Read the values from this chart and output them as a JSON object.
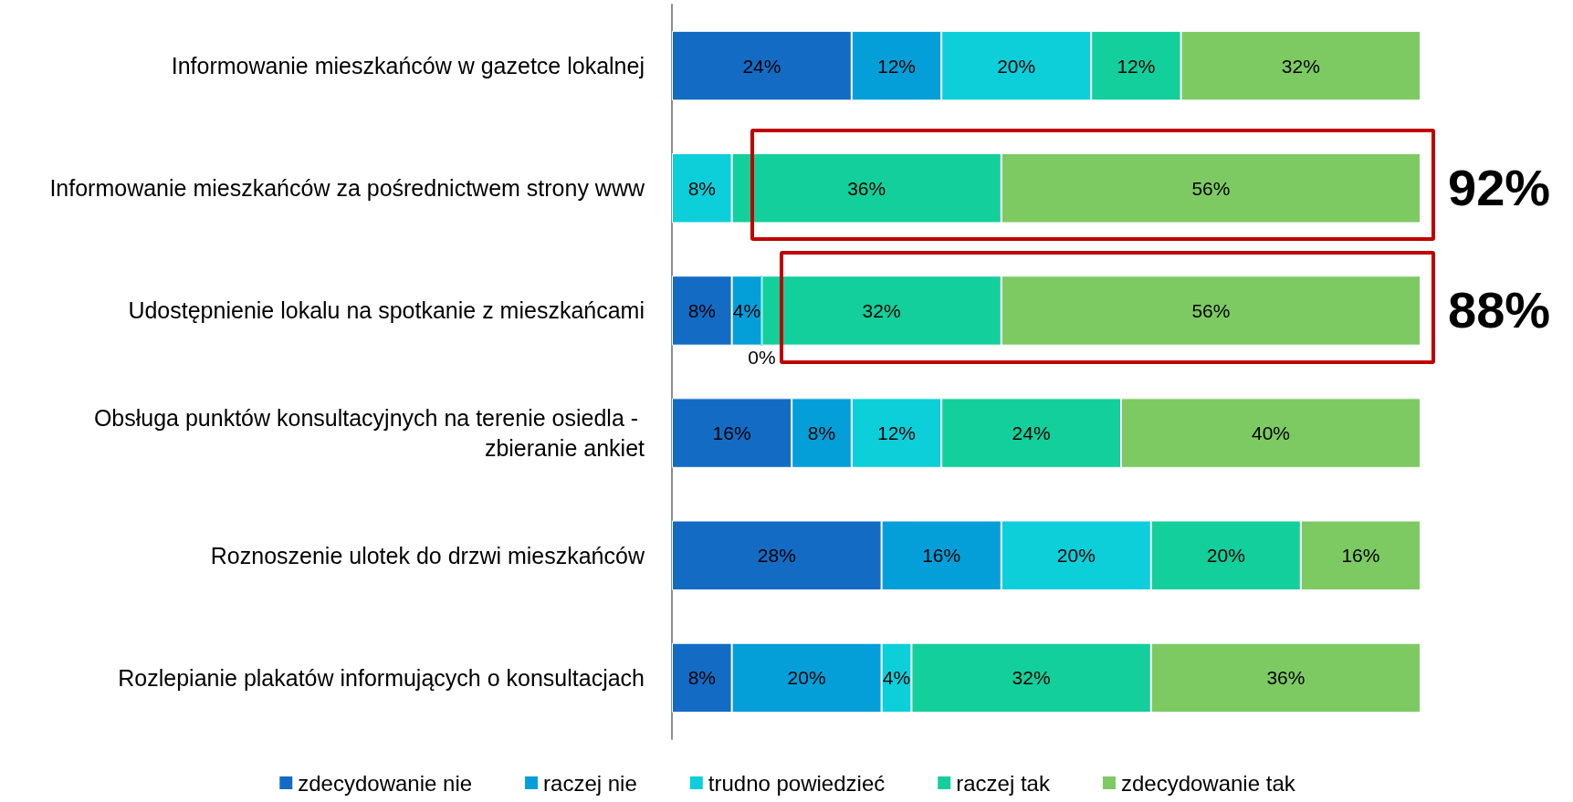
{
  "chart_data": {
    "type": "bar",
    "orientation": "horizontal",
    "stacked": true,
    "categories": [
      "Informowanie mieszkańców w gazetce lokalnej",
      "Informowanie mieszkańców za pośrednictwem strony www",
      "Udostępnienie lokalu na spotkanie z mieszkańcami",
      "Obsługa punktów konsultacyjnych na terenie osiedla - zbieranie ankiet",
      "Roznoszenie ulotek do drzwi mieszkańców",
      "Rozlepianie plakatów informujących o konsultacjach"
    ],
    "series": [
      {
        "name": "zdecydowanie nie",
        "color": "#146bc4",
        "values": [
          24,
          null,
          8,
          16,
          28,
          8
        ],
        "value_labels": [
          "24%",
          null,
          "8%",
          "16%",
          "28%",
          "8%"
        ]
      },
      {
        "name": "raczej nie",
        "color": "#049fd9",
        "values": [
          12,
          null,
          4,
          8,
          16,
          20
        ],
        "value_labels": [
          "12%",
          null,
          "4%",
          "8%",
          "16%",
          "20%"
        ]
      },
      {
        "name": "trudno powiedzieć",
        "color": "#0dcfda",
        "values": [
          20,
          8,
          0,
          12,
          20,
          4
        ],
        "value_labels": [
          "20%",
          "8%",
          "0%",
          "12%",
          "20%",
          "4%"
        ]
      },
      {
        "name": "raczej tak",
        "color": "#13cf9b",
        "values": [
          12,
          36,
          32,
          24,
          20,
          32
        ],
        "value_labels": [
          "12%",
          "36%",
          "32%",
          "24%",
          "20%",
          "32%"
        ]
      },
      {
        "name": "zdecydowanie tak",
        "color": "#7dca63",
        "values": [
          32,
          56,
          56,
          40,
          16,
          36
        ],
        "value_labels": [
          "32%",
          "56%",
          "56%",
          "40%",
          "16%",
          "36%"
        ]
      }
    ],
    "xlim": [
      0,
      100
    ],
    "legend": "bottom",
    "tick_labels": "y",
    "annotations": [
      {
        "text": "92%",
        "x": 100,
        "y": "Informowanie mieszkańców za pośrednictwem strony www"
      },
      {
        "text": "88%",
        "x": 100,
        "y": "Udostępnienie lokalu na spotkanie z mieszkańcami"
      }
    ]
  }
}
